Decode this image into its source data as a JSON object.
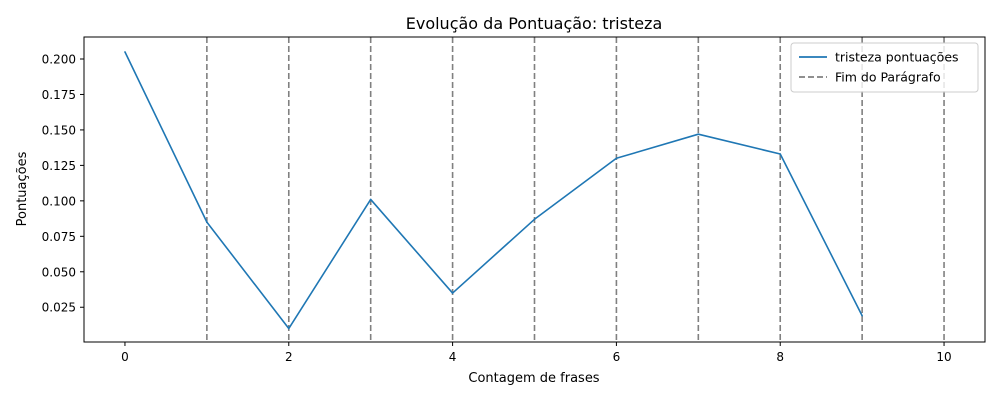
{
  "chart_data": {
    "type": "line",
    "title": "Evolução da Pontuação: tristeza",
    "xlabel": "Contagem de frases",
    "ylabel": "Pontuações",
    "xlim": [
      -0.5,
      10.5
    ],
    "ylim": [
      0.0005,
      0.2155
    ],
    "xticks": [
      0,
      2,
      4,
      6,
      8,
      10
    ],
    "yticks": [
      0.025,
      0.05,
      0.075,
      0.1,
      0.125,
      0.15,
      0.175,
      0.2
    ],
    "ytick_labels": [
      "0.025",
      "0.050",
      "0.075",
      "0.100",
      "0.125",
      "0.150",
      "0.175",
      "0.200"
    ],
    "grid": false,
    "legend_position": "top-right",
    "series": [
      {
        "name": "tristeza pontuações",
        "color": "#1f77b4",
        "x": [
          0,
          1,
          2,
          3,
          4,
          5,
          6,
          7,
          8,
          9
        ],
        "values": [
          0.205,
          0.085,
          0.01,
          0.101,
          0.035,
          0.087,
          0.13,
          0.147,
          0.133,
          0.019
        ]
      }
    ],
    "vlines": {
      "name": "Fim do Parágrafo",
      "color": "#808080",
      "style": "dashed",
      "x": [
        1,
        2,
        3,
        4,
        5,
        6,
        7,
        8,
        9,
        10
      ]
    }
  }
}
